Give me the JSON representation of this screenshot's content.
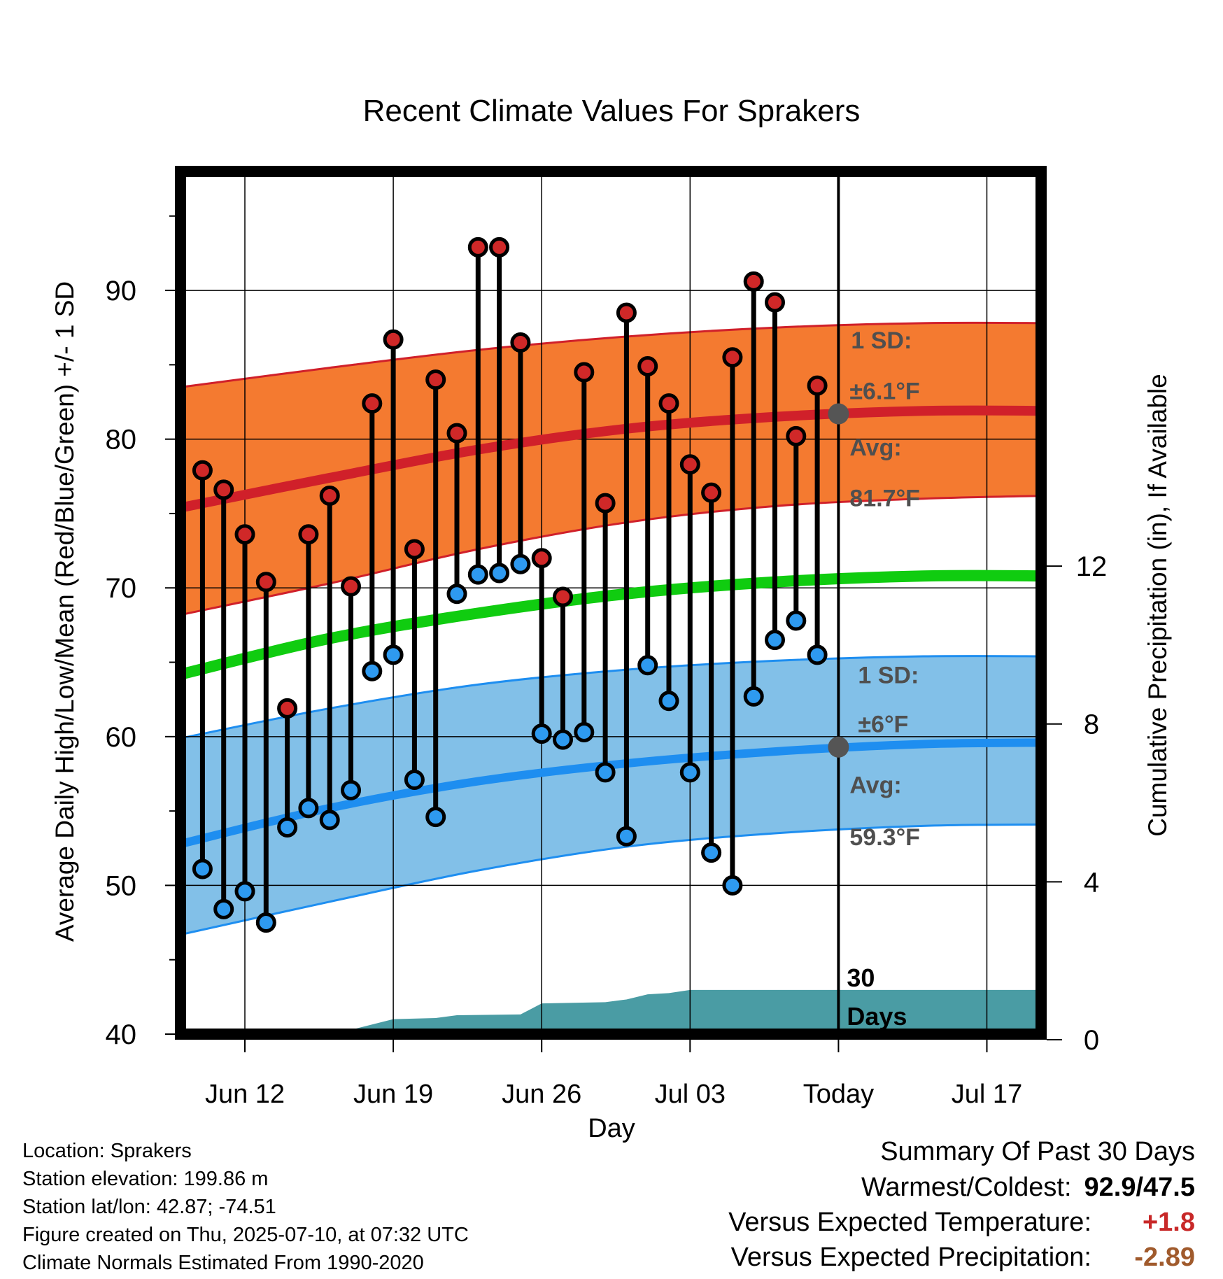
{
  "chart_data": {
    "type": "line",
    "title": "Recent Climate Values For Sprakers",
    "xlabel": "Day",
    "ylabel_left": "Average Daily High/Low/Mean (Red/Blue/Green) +/- 1 SD",
    "ylabel_right": "Cumulative Precipitation (in), If Available",
    "ylim_left": [
      40,
      98
    ],
    "ylim_right": [
      0,
      22
    ],
    "y_ticks_left": [
      40,
      50,
      60,
      70,
      80,
      90
    ],
    "y_ticks_right": [
      0,
      4,
      8,
      12
    ],
    "x_range": [
      "2025-06-09",
      "2025-07-20"
    ],
    "x_ticks": [
      {
        "date": "2025-06-12",
        "label": "Jun 12"
      },
      {
        "date": "2025-06-19",
        "label": "Jun 19"
      },
      {
        "date": "2025-06-26",
        "label": "Jun 26"
      },
      {
        "date": "2025-07-03",
        "label": "Jul 03"
      },
      {
        "date": "2025-07-10",
        "label": "Today"
      },
      {
        "date": "2025-07-17",
        "label": "Jul 17"
      }
    ],
    "grid": true,
    "today": "2025-07-10",
    "daily_observations": [
      {
        "date": "2025-06-10",
        "high": 77.9,
        "low": 51.1
      },
      {
        "date": "2025-06-11",
        "high": 76.6,
        "low": 48.4
      },
      {
        "date": "2025-06-12",
        "high": 73.6,
        "low": 49.6
      },
      {
        "date": "2025-06-13",
        "high": 70.4,
        "low": 47.5
      },
      {
        "date": "2025-06-14",
        "high": 61.9,
        "low": 53.9
      },
      {
        "date": "2025-06-15",
        "high": 73.6,
        "low": 55.2
      },
      {
        "date": "2025-06-16",
        "high": 76.2,
        "low": 54.4
      },
      {
        "date": "2025-06-17",
        "high": 70.1,
        "low": 56.4
      },
      {
        "date": "2025-06-18",
        "high": 82.4,
        "low": 64.4
      },
      {
        "date": "2025-06-19",
        "high": 86.7,
        "low": 65.5
      },
      {
        "date": "2025-06-20",
        "high": 72.6,
        "low": 57.1
      },
      {
        "date": "2025-06-21",
        "high": 84.0,
        "low": 54.6
      },
      {
        "date": "2025-06-22",
        "high": 80.4,
        "low": 69.6
      },
      {
        "date": "2025-06-23",
        "high": 92.9,
        "low": 70.9
      },
      {
        "date": "2025-06-24",
        "high": 92.9,
        "low": 71.0
      },
      {
        "date": "2025-06-25",
        "high": 86.5,
        "low": 71.6
      },
      {
        "date": "2025-06-26",
        "high": 72.0,
        "low": 60.2
      },
      {
        "date": "2025-06-27",
        "high": 69.4,
        "low": 59.8
      },
      {
        "date": "2025-06-28",
        "high": 84.5,
        "low": 60.3
      },
      {
        "date": "2025-06-29",
        "high": 75.7,
        "low": 57.6
      },
      {
        "date": "2025-06-30",
        "high": 88.5,
        "low": 53.3
      },
      {
        "date": "2025-07-01",
        "high": 84.9,
        "low": 64.8
      },
      {
        "date": "2025-07-02",
        "high": 82.4,
        "low": 62.4
      },
      {
        "date": "2025-07-03",
        "high": 78.3,
        "low": 57.6
      },
      {
        "date": "2025-07-04",
        "high": 76.4,
        "low": 52.2
      },
      {
        "date": "2025-07-05",
        "high": 85.5,
        "low": 50.0
      },
      {
        "date": "2025-07-06",
        "high": 90.6,
        "low": 62.7
      },
      {
        "date": "2025-07-07",
        "high": 89.2,
        "low": 66.5
      },
      {
        "date": "2025-07-08",
        "high": 80.2,
        "low": 67.8
      },
      {
        "date": "2025-07-09",
        "high": 83.6,
        "low": 65.5
      }
    ],
    "normals": {
      "dates": [
        "2025-06-09",
        "2025-06-16",
        "2025-06-23",
        "2025-06-30",
        "2025-07-07",
        "2025-07-14",
        "2025-07-20"
      ],
      "high_avg": [
        75.4,
        77.4,
        79.3,
        80.7,
        81.5,
        81.9,
        81.9
      ],
      "high_sd_upper": [
        83.5,
        84.8,
        86.0,
        86.9,
        87.5,
        87.8,
        87.8
      ],
      "high_sd_lower": [
        68.2,
        70.3,
        72.6,
        74.4,
        75.5,
        76.0,
        76.2
      ],
      "mean_avg": [
        64.2,
        66.6,
        68.3,
        69.6,
        70.4,
        70.8,
        70.8
      ],
      "low_avg": [
        52.8,
        55.2,
        57.0,
        58.2,
        59.0,
        59.5,
        59.6
      ],
      "low_sd_upper": [
        59.9,
        61.9,
        63.5,
        64.5,
        65.1,
        65.4,
        65.4
      ],
      "low_sd_lower": [
        46.7,
        48.9,
        51.0,
        52.6,
        53.5,
        54.0,
        54.1
      ]
    },
    "precip_cumulative": {
      "dates": [
        "2025-06-10",
        "2025-06-12",
        "2025-06-14",
        "2025-06-17",
        "2025-06-19",
        "2025-06-21",
        "2025-06-22",
        "2025-06-25",
        "2025-06-26",
        "2025-06-29",
        "2025-06-30",
        "2025-07-01",
        "2025-07-02",
        "2025-07-03",
        "2025-07-20"
      ],
      "values": [
        0.02,
        0.03,
        0.18,
        0.25,
        0.52,
        0.55,
        0.62,
        0.64,
        0.92,
        0.95,
        1.02,
        1.15,
        1.18,
        1.26,
        1.26
      ]
    },
    "annotations": {
      "high_sd_label": "1 SD:",
      "high_sd_value": "±6.1°F",
      "high_avg_label": "Avg:",
      "high_avg_value": "81.7°F",
      "low_sd_label": "1 SD:",
      "low_sd_value": "±6°F",
      "low_avg_label": "Avg:",
      "low_avg_value": "59.3°F",
      "days_line1": "30",
      "days_line2": "Days"
    },
    "colors": {
      "high_band": "#f47a30",
      "high_line": "#d0202a",
      "low_band": "#82c0e8",
      "low_line": "#1e8ef0",
      "mean_line": "#10cc10",
      "precip": "#4a9ca4",
      "high_dot": "#d02828",
      "low_dot": "#2e9af0",
      "annotation_text": "#4f4f4f"
    }
  },
  "info": {
    "location": "Location: Sprakers",
    "elevation": "Station elevation: 199.86 m",
    "latlon": "Station lat/lon: 42.87; -74.51",
    "created": "Figure created on Thu, 2025-07-10, at 07:32 UTC",
    "normals_period": "Climate Normals Estimated From 1990-2020"
  },
  "summary": {
    "title": "Summary Of Past 30 Days",
    "warm_cold_label": "Warmest/Coldest:",
    "warm_cold_value": "92.9/47.5",
    "temp_label": "Versus Expected Temperature:",
    "temp_value": "+1.8",
    "temp_color": "#c82828",
    "precip_label": "Versus Expected Precipitation:",
    "precip_value": "-2.89",
    "precip_color": "#a05a2c"
  }
}
